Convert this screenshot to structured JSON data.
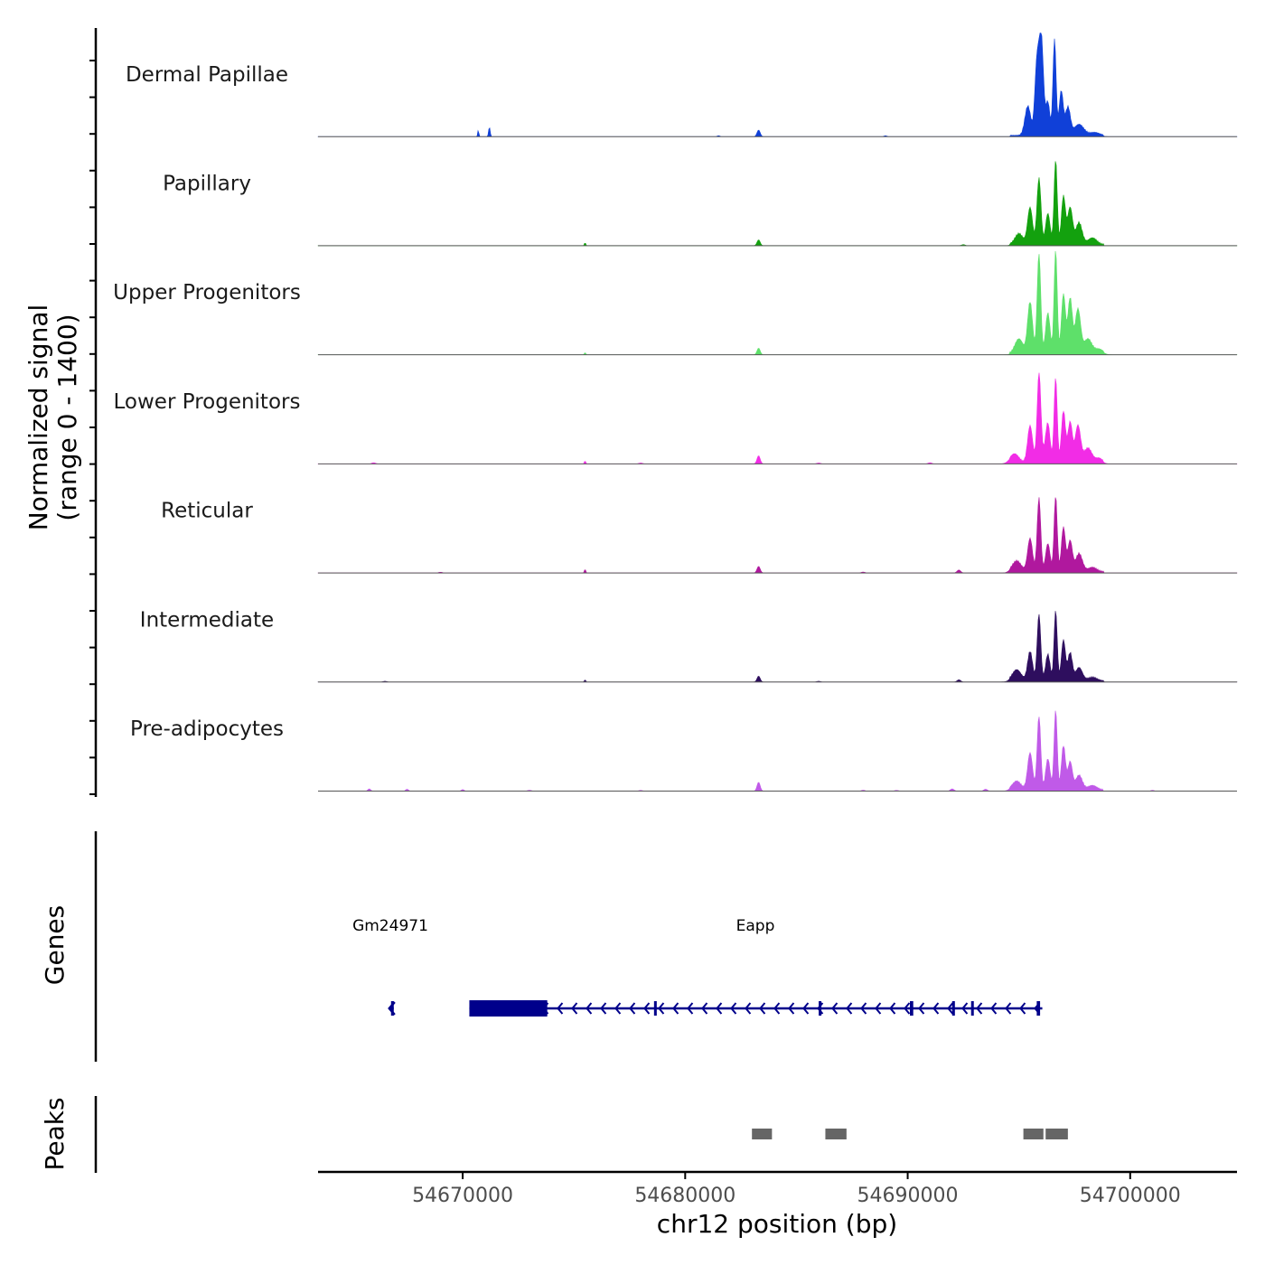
{
  "chart_data": {
    "type": "area",
    "title": "",
    "chromosome": "chr12",
    "xlabel": "chr12 position (bp)",
    "ylabel_line1": "Normalized signal",
    "ylabel_line2": "(range 0 - 1400)",
    "xlim": [
      54663500,
      54704800
    ],
    "ylim": [
      0,
      1400
    ],
    "x_ticks": [
      54670000,
      54680000,
      54690000,
      54700000
    ],
    "x_tick_labels": [
      "54670000",
      "54680000",
      "54690000",
      "54700000"
    ],
    "series": [
      {
        "name": "Dermal Papillae",
        "color": "#1040d8",
        "peaks": [
          [
            54670700,
            25,
            90
          ],
          [
            54671200,
            35,
            130
          ],
          [
            54683300,
            70,
            90
          ],
          [
            54695400,
            130,
            400
          ],
          [
            54695800,
            90,
            900
          ],
          [
            54696000,
            100,
            1350
          ],
          [
            54696300,
            90,
            450
          ],
          [
            54696600,
            70,
            1300
          ],
          [
            54696900,
            90,
            600
          ],
          [
            54697200,
            110,
            380
          ],
          [
            54697700,
            220,
            150
          ],
          [
            54698400,
            220,
            40
          ],
          [
            54681500,
            60,
            12
          ],
          [
            54689000,
            60,
            12
          ]
        ]
      },
      {
        "name": "Papillary",
        "color": "#13a10e",
        "peaks": [
          [
            54675500,
            30,
            40
          ],
          [
            54683300,
            70,
            80
          ],
          [
            54695000,
            180,
            150
          ],
          [
            54695500,
            110,
            500
          ],
          [
            54695900,
            90,
            900
          ],
          [
            54696300,
            100,
            420
          ],
          [
            54696650,
            70,
            1150
          ],
          [
            54697000,
            90,
            650
          ],
          [
            54697300,
            110,
            500
          ],
          [
            54697700,
            140,
            300
          ],
          [
            54698300,
            200,
            90
          ],
          [
            54692500,
            80,
            15
          ]
        ]
      },
      {
        "name": "Upper Progenitors",
        "color": "#5ee06a",
        "peaks": [
          [
            54675500,
            30,
            30
          ],
          [
            54683300,
            70,
            90
          ],
          [
            54695000,
            180,
            200
          ],
          [
            54695500,
            110,
            700
          ],
          [
            54695900,
            80,
            1350
          ],
          [
            54696300,
            100,
            550
          ],
          [
            54696650,
            70,
            1400
          ],
          [
            54697000,
            90,
            800
          ],
          [
            54697300,
            100,
            750
          ],
          [
            54697650,
            120,
            600
          ],
          [
            54698100,
            180,
            200
          ],
          [
            54698600,
            180,
            60
          ]
        ]
      },
      {
        "name": "Lower Progenitors",
        "color": "#f22ce6",
        "peaks": [
          [
            54675500,
            30,
            40
          ],
          [
            54683300,
            70,
            110
          ],
          [
            54694800,
            200,
            120
          ],
          [
            54695500,
            110,
            500
          ],
          [
            54695900,
            80,
            1100
          ],
          [
            54696300,
            100,
            520
          ],
          [
            54696650,
            70,
            1150
          ],
          [
            54697000,
            90,
            700
          ],
          [
            54697300,
            100,
            550
          ],
          [
            54697650,
            120,
            500
          ],
          [
            54698100,
            180,
            200
          ],
          [
            54698600,
            150,
            60
          ],
          [
            54666000,
            80,
            15
          ],
          [
            54678000,
            80,
            12
          ],
          [
            54686000,
            80,
            12
          ],
          [
            54691000,
            80,
            15
          ],
          [
            54696000,
            150,
            150
          ]
        ]
      },
      {
        "name": "Reticular",
        "color": "#b0189e",
        "peaks": [
          [
            54675500,
            30,
            50
          ],
          [
            54683300,
            70,
            90
          ],
          [
            54692300,
            80,
            40
          ],
          [
            54694900,
            200,
            150
          ],
          [
            54695500,
            110,
            450
          ],
          [
            54695900,
            80,
            1000
          ],
          [
            54696300,
            100,
            380
          ],
          [
            54696650,
            70,
            1030
          ],
          [
            54697000,
            90,
            600
          ],
          [
            54697300,
            100,
            420
          ],
          [
            54697700,
            150,
            250
          ],
          [
            54698300,
            200,
            60
          ],
          [
            54669000,
            80,
            10
          ],
          [
            54688000,
            80,
            12
          ]
        ]
      },
      {
        "name": "Intermediate",
        "color": "#2e0e5e",
        "peaks": [
          [
            54675500,
            30,
            30
          ],
          [
            54683300,
            70,
            80
          ],
          [
            54692300,
            80,
            30
          ],
          [
            54694900,
            200,
            150
          ],
          [
            54695500,
            110,
            400
          ],
          [
            54695900,
            80,
            900
          ],
          [
            54696300,
            100,
            360
          ],
          [
            54696650,
            70,
            950
          ],
          [
            54697000,
            90,
            550
          ],
          [
            54697300,
            100,
            380
          ],
          [
            54697700,
            150,
            180
          ],
          [
            54698300,
            200,
            50
          ],
          [
            54686000,
            80,
            10
          ],
          [
            54666500,
            80,
            10
          ]
        ]
      },
      {
        "name": "Pre-adipocytes",
        "color": "#c05ae8",
        "peaks": [
          [
            54665800,
            60,
            30
          ],
          [
            54667500,
            60,
            25
          ],
          [
            54670000,
            60,
            20
          ],
          [
            54683300,
            70,
            120
          ],
          [
            54692000,
            80,
            30
          ],
          [
            54693500,
            80,
            25
          ],
          [
            54694900,
            200,
            120
          ],
          [
            54695500,
            110,
            500
          ],
          [
            54695900,
            80,
            1000
          ],
          [
            54696300,
            100,
            420
          ],
          [
            54696650,
            70,
            1080
          ],
          [
            54697000,
            90,
            600
          ],
          [
            54697300,
            100,
            380
          ],
          [
            54697700,
            150,
            200
          ],
          [
            54698300,
            200,
            60
          ],
          [
            54673000,
            80,
            12
          ],
          [
            54678000,
            80,
            10
          ],
          [
            54688000,
            80,
            12
          ],
          [
            54689500,
            80,
            10
          ],
          [
            54701000,
            80,
            10
          ]
        ]
      }
    ],
    "genes_track": {
      "label": "Genes",
      "color": "#00008b",
      "genes": [
        {
          "name": "Gm24971",
          "strand": "-",
          "start": 54666700,
          "end": 54666900,
          "exons": [
            [
              54666780,
              54666830
            ]
          ]
        },
        {
          "name": "Eapp",
          "strand": "-",
          "start": 54670300,
          "end": 54696050,
          "exons": [
            [
              54670300,
              54673800
            ],
            [
              54678600,
              54678700
            ],
            [
              54686000,
              54686100
            ],
            [
              54690100,
              54690250
            ],
            [
              54692000,
              54692100
            ],
            [
              54692850,
              54692950
            ],
            [
              54695800,
              54695950
            ]
          ]
        }
      ]
    },
    "peaks_track": {
      "label": "Peaks",
      "color": "#666666",
      "regions": [
        [
          54683000,
          54683900
        ],
        [
          54686300,
          54687250
        ],
        [
          54695200,
          54696100
        ],
        [
          54696200,
          54697200
        ]
      ]
    }
  }
}
